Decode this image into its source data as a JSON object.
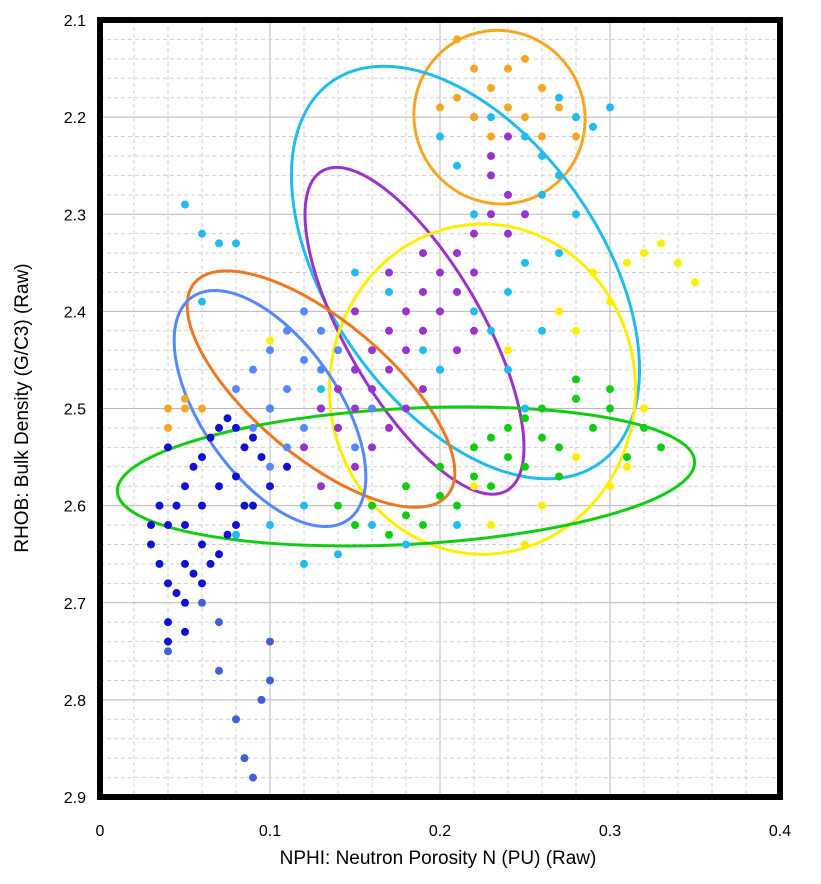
{
  "chart_data": {
    "type": "scatter",
    "title": "",
    "xlabel": "NPHI: Neutron Porosity N (PU) (Raw)",
    "ylabel": "RHOB: Bulk Density (G/C3) (Raw)",
    "xlim": [
      0,
      0.4
    ],
    "ylim": [
      2.9,
      2.1
    ],
    "y_axis_inverted": true,
    "x_ticks": [
      "0",
      "0.1",
      "0.2",
      "0.3",
      "0.4"
    ],
    "y_ticks": [
      "2.1",
      "2.2",
      "2.3",
      "2.4",
      "2.5",
      "2.6",
      "2.7",
      "2.8",
      "2.9"
    ],
    "grid": true,
    "legend": "none",
    "series": [
      {
        "color": "#1010d0",
        "points": [
          [
            0.03,
            2.64
          ],
          [
            0.035,
            2.66
          ],
          [
            0.04,
            2.62
          ],
          [
            0.045,
            2.6
          ],
          [
            0.05,
            2.58
          ],
          [
            0.055,
            2.56
          ],
          [
            0.06,
            2.55
          ],
          [
            0.065,
            2.53
          ],
          [
            0.07,
            2.52
          ],
          [
            0.075,
            2.51
          ],
          [
            0.08,
            2.52
          ],
          [
            0.085,
            2.54
          ],
          [
            0.09,
            2.53
          ],
          [
            0.1,
            2.5
          ],
          [
            0.04,
            2.68
          ],
          [
            0.045,
            2.69
          ],
          [
            0.05,
            2.7
          ],
          [
            0.06,
            2.68
          ],
          [
            0.07,
            2.65
          ],
          [
            0.08,
            2.62
          ],
          [
            0.09,
            2.6
          ],
          [
            0.1,
            2.58
          ],
          [
            0.11,
            2.56
          ],
          [
            0.04,
            2.54
          ],
          [
            0.05,
            2.62
          ],
          [
            0.06,
            2.6
          ],
          [
            0.07,
            2.58
          ],
          [
            0.08,
            2.57
          ],
          [
            0.03,
            2.62
          ],
          [
            0.035,
            2.6
          ],
          [
            0.04,
            2.72
          ],
          [
            0.05,
            2.73
          ],
          [
            0.055,
            2.67
          ],
          [
            0.065,
            2.66
          ],
          [
            0.075,
            2.63
          ],
          [
            0.085,
            2.6
          ],
          [
            0.095,
            2.55
          ],
          [
            0.04,
            2.74
          ],
          [
            0.05,
            2.66
          ],
          [
            0.06,
            2.64
          ]
        ]
      },
      {
        "color": "#4060d8",
        "points": [
          [
            0.04,
            2.75
          ],
          [
            0.07,
            2.77
          ],
          [
            0.08,
            2.82
          ],
          [
            0.085,
            2.86
          ],
          [
            0.09,
            2.88
          ],
          [
            0.095,
            2.8
          ],
          [
            0.1,
            2.78
          ],
          [
            0.1,
            2.74
          ],
          [
            0.07,
            2.72
          ],
          [
            0.06,
            2.7
          ]
        ]
      },
      {
        "color": "#5588ff",
        "points": [
          [
            0.09,
            2.46
          ],
          [
            0.1,
            2.44
          ],
          [
            0.11,
            2.42
          ],
          [
            0.12,
            2.4
          ],
          [
            0.13,
            2.42
          ],
          [
            0.12,
            2.45
          ],
          [
            0.11,
            2.48
          ],
          [
            0.1,
            2.5
          ],
          [
            0.14,
            2.44
          ],
          [
            0.15,
            2.46
          ],
          [
            0.13,
            2.5
          ],
          [
            0.12,
            2.52
          ],
          [
            0.11,
            2.54
          ],
          [
            0.1,
            2.56
          ],
          [
            0.14,
            2.52
          ],
          [
            0.15,
            2.54
          ],
          [
            0.16,
            2.5
          ],
          [
            0.08,
            2.48
          ],
          [
            0.09,
            2.52
          ],
          [
            0.13,
            2.46
          ]
        ]
      },
      {
        "color": "#9933cc",
        "points": [
          [
            0.13,
            2.5
          ],
          [
            0.14,
            2.48
          ],
          [
            0.15,
            2.46
          ],
          [
            0.16,
            2.44
          ],
          [
            0.17,
            2.42
          ],
          [
            0.18,
            2.4
          ],
          [
            0.19,
            2.38
          ],
          [
            0.2,
            2.36
          ],
          [
            0.21,
            2.34
          ],
          [
            0.22,
            2.32
          ],
          [
            0.23,
            2.3
          ],
          [
            0.24,
            2.28
          ],
          [
            0.15,
            2.5
          ],
          [
            0.16,
            2.48
          ],
          [
            0.17,
            2.46
          ],
          [
            0.18,
            2.44
          ],
          [
            0.19,
            2.42
          ],
          [
            0.2,
            2.4
          ],
          [
            0.21,
            2.38
          ],
          [
            0.22,
            2.36
          ],
          [
            0.14,
            2.52
          ],
          [
            0.16,
            2.54
          ],
          [
            0.18,
            2.5
          ],
          [
            0.2,
            2.46
          ],
          [
            0.22,
            2.42
          ],
          [
            0.24,
            2.32
          ],
          [
            0.25,
            2.3
          ],
          [
            0.23,
            2.26
          ],
          [
            0.22,
            2.2
          ],
          [
            0.24,
            2.22
          ],
          [
            0.15,
            2.56
          ],
          [
            0.17,
            2.52
          ],
          [
            0.19,
            2.48
          ],
          [
            0.21,
            2.44
          ],
          [
            0.12,
            2.54
          ],
          [
            0.13,
            2.58
          ],
          [
            0.17,
            2.36
          ],
          [
            0.19,
            2.34
          ],
          [
            0.15,
            2.4
          ],
          [
            0.23,
            2.24
          ]
        ]
      },
      {
        "color": "#22bbee",
        "points": [
          [
            0.05,
            2.29
          ],
          [
            0.06,
            2.32
          ],
          [
            0.07,
            2.33
          ],
          [
            0.08,
            2.33
          ],
          [
            0.06,
            2.39
          ],
          [
            0.25,
            2.22
          ],
          [
            0.26,
            2.24
          ],
          [
            0.27,
            2.26
          ],
          [
            0.28,
            2.2
          ],
          [
            0.29,
            2.21
          ],
          [
            0.26,
            2.28
          ],
          [
            0.25,
            2.35
          ],
          [
            0.24,
            2.38
          ],
          [
            0.23,
            2.42
          ],
          [
            0.22,
            2.4
          ],
          [
            0.2,
            2.46
          ],
          [
            0.19,
            2.44
          ],
          [
            0.28,
            2.3
          ],
          [
            0.27,
            2.34
          ],
          [
            0.3,
            2.19
          ],
          [
            0.12,
            2.66
          ],
          [
            0.14,
            2.65
          ],
          [
            0.16,
            2.62
          ],
          [
            0.18,
            2.64
          ],
          [
            0.21,
            2.62
          ],
          [
            0.1,
            2.62
          ],
          [
            0.08,
            2.63
          ],
          [
            0.24,
            2.46
          ],
          [
            0.26,
            2.42
          ],
          [
            0.22,
            2.3
          ],
          [
            0.21,
            2.25
          ],
          [
            0.2,
            2.22
          ],
          [
            0.23,
            2.2
          ],
          [
            0.27,
            2.18
          ],
          [
            0.17,
            2.38
          ],
          [
            0.15,
            2.36
          ],
          [
            0.13,
            2.48
          ],
          [
            0.12,
            2.6
          ],
          [
            0.2,
            2.56
          ],
          [
            0.25,
            2.5
          ]
        ]
      },
      {
        "color": "#f5a623",
        "points": [
          [
            0.21,
            2.12
          ],
          [
            0.22,
            2.15
          ],
          [
            0.23,
            2.17
          ],
          [
            0.24,
            2.15
          ],
          [
            0.25,
            2.14
          ],
          [
            0.26,
            2.17
          ],
          [
            0.27,
            2.19
          ],
          [
            0.28,
            2.22
          ],
          [
            0.23,
            2.22
          ],
          [
            0.22,
            2.2
          ],
          [
            0.21,
            2.18
          ],
          [
            0.2,
            2.19
          ],
          [
            0.26,
            2.22
          ],
          [
            0.24,
            2.19
          ],
          [
            0.25,
            2.2
          ],
          [
            0.04,
            2.5
          ],
          [
            0.05,
            2.5
          ],
          [
            0.06,
            2.5
          ],
          [
            0.04,
            2.52
          ],
          [
            0.05,
            2.49
          ]
        ]
      },
      {
        "color": "#ffee00",
        "points": [
          [
            0.29,
            2.36
          ],
          [
            0.3,
            2.39
          ],
          [
            0.28,
            2.42
          ],
          [
            0.27,
            2.4
          ],
          [
            0.31,
            2.35
          ],
          [
            0.32,
            2.34
          ],
          [
            0.33,
            2.33
          ],
          [
            0.34,
            2.35
          ],
          [
            0.35,
            2.37
          ],
          [
            0.2,
            2.56
          ],
          [
            0.22,
            2.58
          ],
          [
            0.23,
            2.62
          ],
          [
            0.25,
            2.64
          ],
          [
            0.26,
            2.6
          ],
          [
            0.28,
            2.55
          ],
          [
            0.31,
            2.56
          ],
          [
            0.3,
            2.58
          ],
          [
            0.24,
            2.44
          ],
          [
            0.32,
            2.5
          ],
          [
            0.1,
            2.43
          ]
        ]
      },
      {
        "color": "#11cc11",
        "points": [
          [
            0.16,
            2.6
          ],
          [
            0.18,
            2.58
          ],
          [
            0.2,
            2.56
          ],
          [
            0.22,
            2.54
          ],
          [
            0.24,
            2.52
          ],
          [
            0.26,
            2.5
          ],
          [
            0.28,
            2.49
          ],
          [
            0.3,
            2.5
          ],
          [
            0.32,
            2.52
          ],
          [
            0.33,
            2.54
          ],
          [
            0.27,
            2.54
          ],
          [
            0.25,
            2.56
          ],
          [
            0.23,
            2.58
          ],
          [
            0.21,
            2.6
          ],
          [
            0.19,
            2.62
          ],
          [
            0.17,
            2.63
          ],
          [
            0.15,
            2.62
          ],
          [
            0.14,
            2.6
          ],
          [
            0.29,
            2.52
          ],
          [
            0.31,
            2.55
          ],
          [
            0.26,
            2.53
          ],
          [
            0.24,
            2.55
          ],
          [
            0.22,
            2.57
          ],
          [
            0.2,
            2.59
          ],
          [
            0.18,
            2.61
          ],
          [
            0.28,
            2.47
          ],
          [
            0.3,
            2.48
          ],
          [
            0.25,
            2.51
          ],
          [
            0.23,
            2.53
          ],
          [
            0.27,
            2.57
          ]
        ]
      }
    ],
    "ellipses": [
      {
        "color": "#f5a623",
        "cx": 0.235,
        "cy": 2.2,
        "rx": 0.05,
        "ry": 0.09,
        "angle": -30
      },
      {
        "color": "#22bbee",
        "cx": 0.215,
        "cy": 2.36,
        "rx": 0.08,
        "ry": 0.24,
        "angle": -35
      },
      {
        "color": "#9933cc",
        "cx": 0.185,
        "cy": 2.42,
        "rx": 0.04,
        "ry": 0.19,
        "angle": -30
      },
      {
        "color": "#ffee00",
        "cx": 0.225,
        "cy": 2.48,
        "rx": 0.09,
        "ry": 0.17,
        "angle": 0
      },
      {
        "color": "#ee7722",
        "cx": 0.13,
        "cy": 2.48,
        "rx": 0.04,
        "ry": 0.17,
        "angle": -50
      },
      {
        "color": "#5588ff",
        "cx": 0.1,
        "cy": 2.5,
        "rx": 0.04,
        "ry": 0.14,
        "angle": -35
      },
      {
        "color": "#11cc11",
        "cx": 0.18,
        "cy": 2.57,
        "rx": 0.17,
        "ry": 0.07,
        "angle": -3
      }
    ]
  }
}
